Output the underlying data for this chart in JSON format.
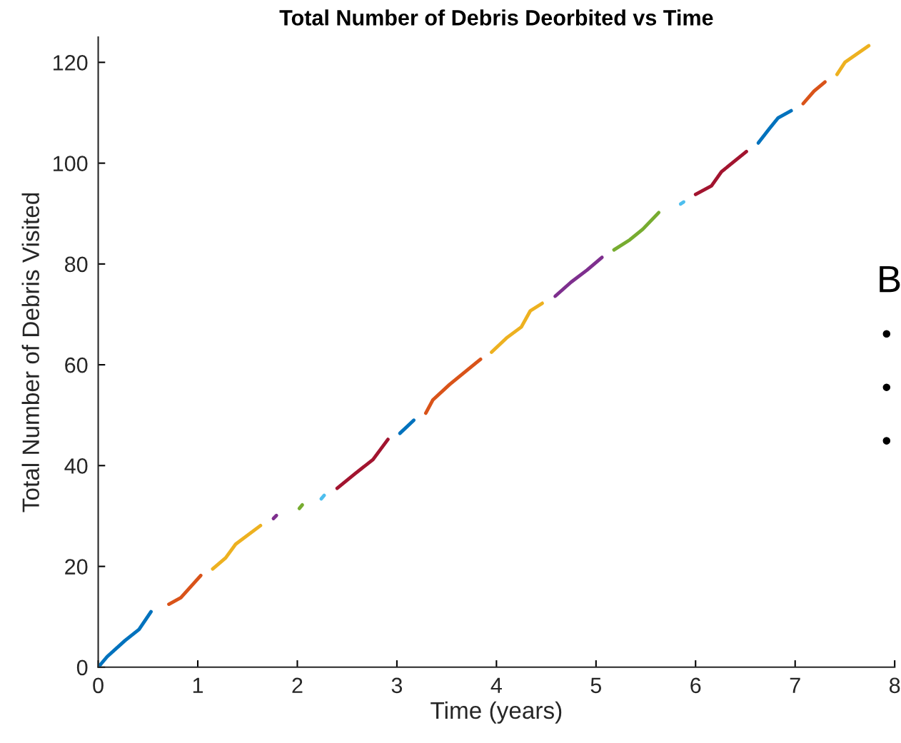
{
  "chart_data": {
    "type": "line",
    "title": "Total Number of Debris Deorbited vs Time",
    "xlabel": "Time (years)",
    "ylabel": "Total Number of Debris Visited",
    "xlim": [
      0,
      8
    ],
    "xticks": [
      0,
      1,
      2,
      3,
      4,
      5,
      6,
      7,
      8
    ],
    "ylim": [
      0,
      125
    ],
    "yticks": [
      0,
      20,
      40,
      60,
      80,
      100,
      120
    ],
    "grid": false,
    "legend": false,
    "marker": "none",
    "line_style": "solid",
    "annotations": [
      "B",
      "•",
      "•",
      "•"
    ],
    "series": [
      {
        "color": "#0072bd",
        "x": [
          0,
          0.09,
          0.27,
          0.41,
          0.53
        ],
        "values": [
          0,
          2.1,
          5.3,
          7.5,
          11.0
        ]
      },
      {
        "color": "#d95319",
        "x": [
          0.71,
          0.83,
          1.03
        ],
        "values": [
          12.5,
          13.8,
          18.2
        ]
      },
      {
        "color": "#edb120",
        "x": [
          1.15,
          1.28,
          1.38,
          1.63
        ],
        "values": [
          19.5,
          21.7,
          24.4,
          28.1
        ]
      },
      {
        "color": "#7e2f8e",
        "x": [
          1.76,
          1.79
        ],
        "values": [
          29.5,
          30.1
        ]
      },
      {
        "color": "#77ac30",
        "x": [
          2.02,
          2.05
        ],
        "values": [
          31.5,
          32.2
        ]
      },
      {
        "color": "#4dbeee",
        "x": [
          2.24,
          2.27
        ],
        "values": [
          33.4,
          34.1
        ]
      },
      {
        "color": "#a2142f",
        "x": [
          2.4,
          2.58,
          2.76,
          2.91
        ],
        "values": [
          35.5,
          38.4,
          41.2,
          45.2
        ]
      },
      {
        "color": "#0072bd",
        "x": [
          3.03,
          3.17
        ],
        "values": [
          46.4,
          49.0
        ]
      },
      {
        "color": "#d95319",
        "x": [
          3.29,
          3.36,
          3.53,
          3.84
        ],
        "values": [
          50.4,
          53.0,
          56.1,
          61.1
        ]
      },
      {
        "color": "#edb120",
        "x": [
          3.95,
          4.1,
          4.25,
          4.34,
          4.46
        ],
        "values": [
          62.5,
          65.3,
          67.5,
          70.7,
          72.2
        ]
      },
      {
        "color": "#7e2f8e",
        "x": [
          4.59,
          4.75,
          4.91,
          5.06
        ],
        "values": [
          73.6,
          76.4,
          78.8,
          81.3
        ]
      },
      {
        "color": "#77ac30",
        "x": [
          5.18,
          5.34,
          5.47,
          5.63
        ],
        "values": [
          82.8,
          84.8,
          86.9,
          90.2
        ]
      },
      {
        "color": "#4dbeee",
        "x": [
          5.85,
          5.88
        ],
        "values": [
          91.9,
          92.3
        ]
      },
      {
        "color": "#a2142f",
        "x": [
          6.0,
          6.16,
          6.26,
          6.51
        ],
        "values": [
          93.8,
          95.5,
          98.3,
          102.3
        ]
      },
      {
        "color": "#0072bd",
        "x": [
          6.63,
          6.74,
          6.83,
          6.96
        ],
        "values": [
          104.0,
          106.8,
          109.0,
          110.4
        ]
      },
      {
        "color": "#d95319",
        "x": [
          7.08,
          7.19,
          7.3
        ],
        "values": [
          111.8,
          114.3,
          116.1
        ]
      },
      {
        "color": "#edb120",
        "x": [
          7.42,
          7.5,
          7.74
        ],
        "values": [
          117.6,
          120.0,
          123.3
        ]
      }
    ]
  }
}
